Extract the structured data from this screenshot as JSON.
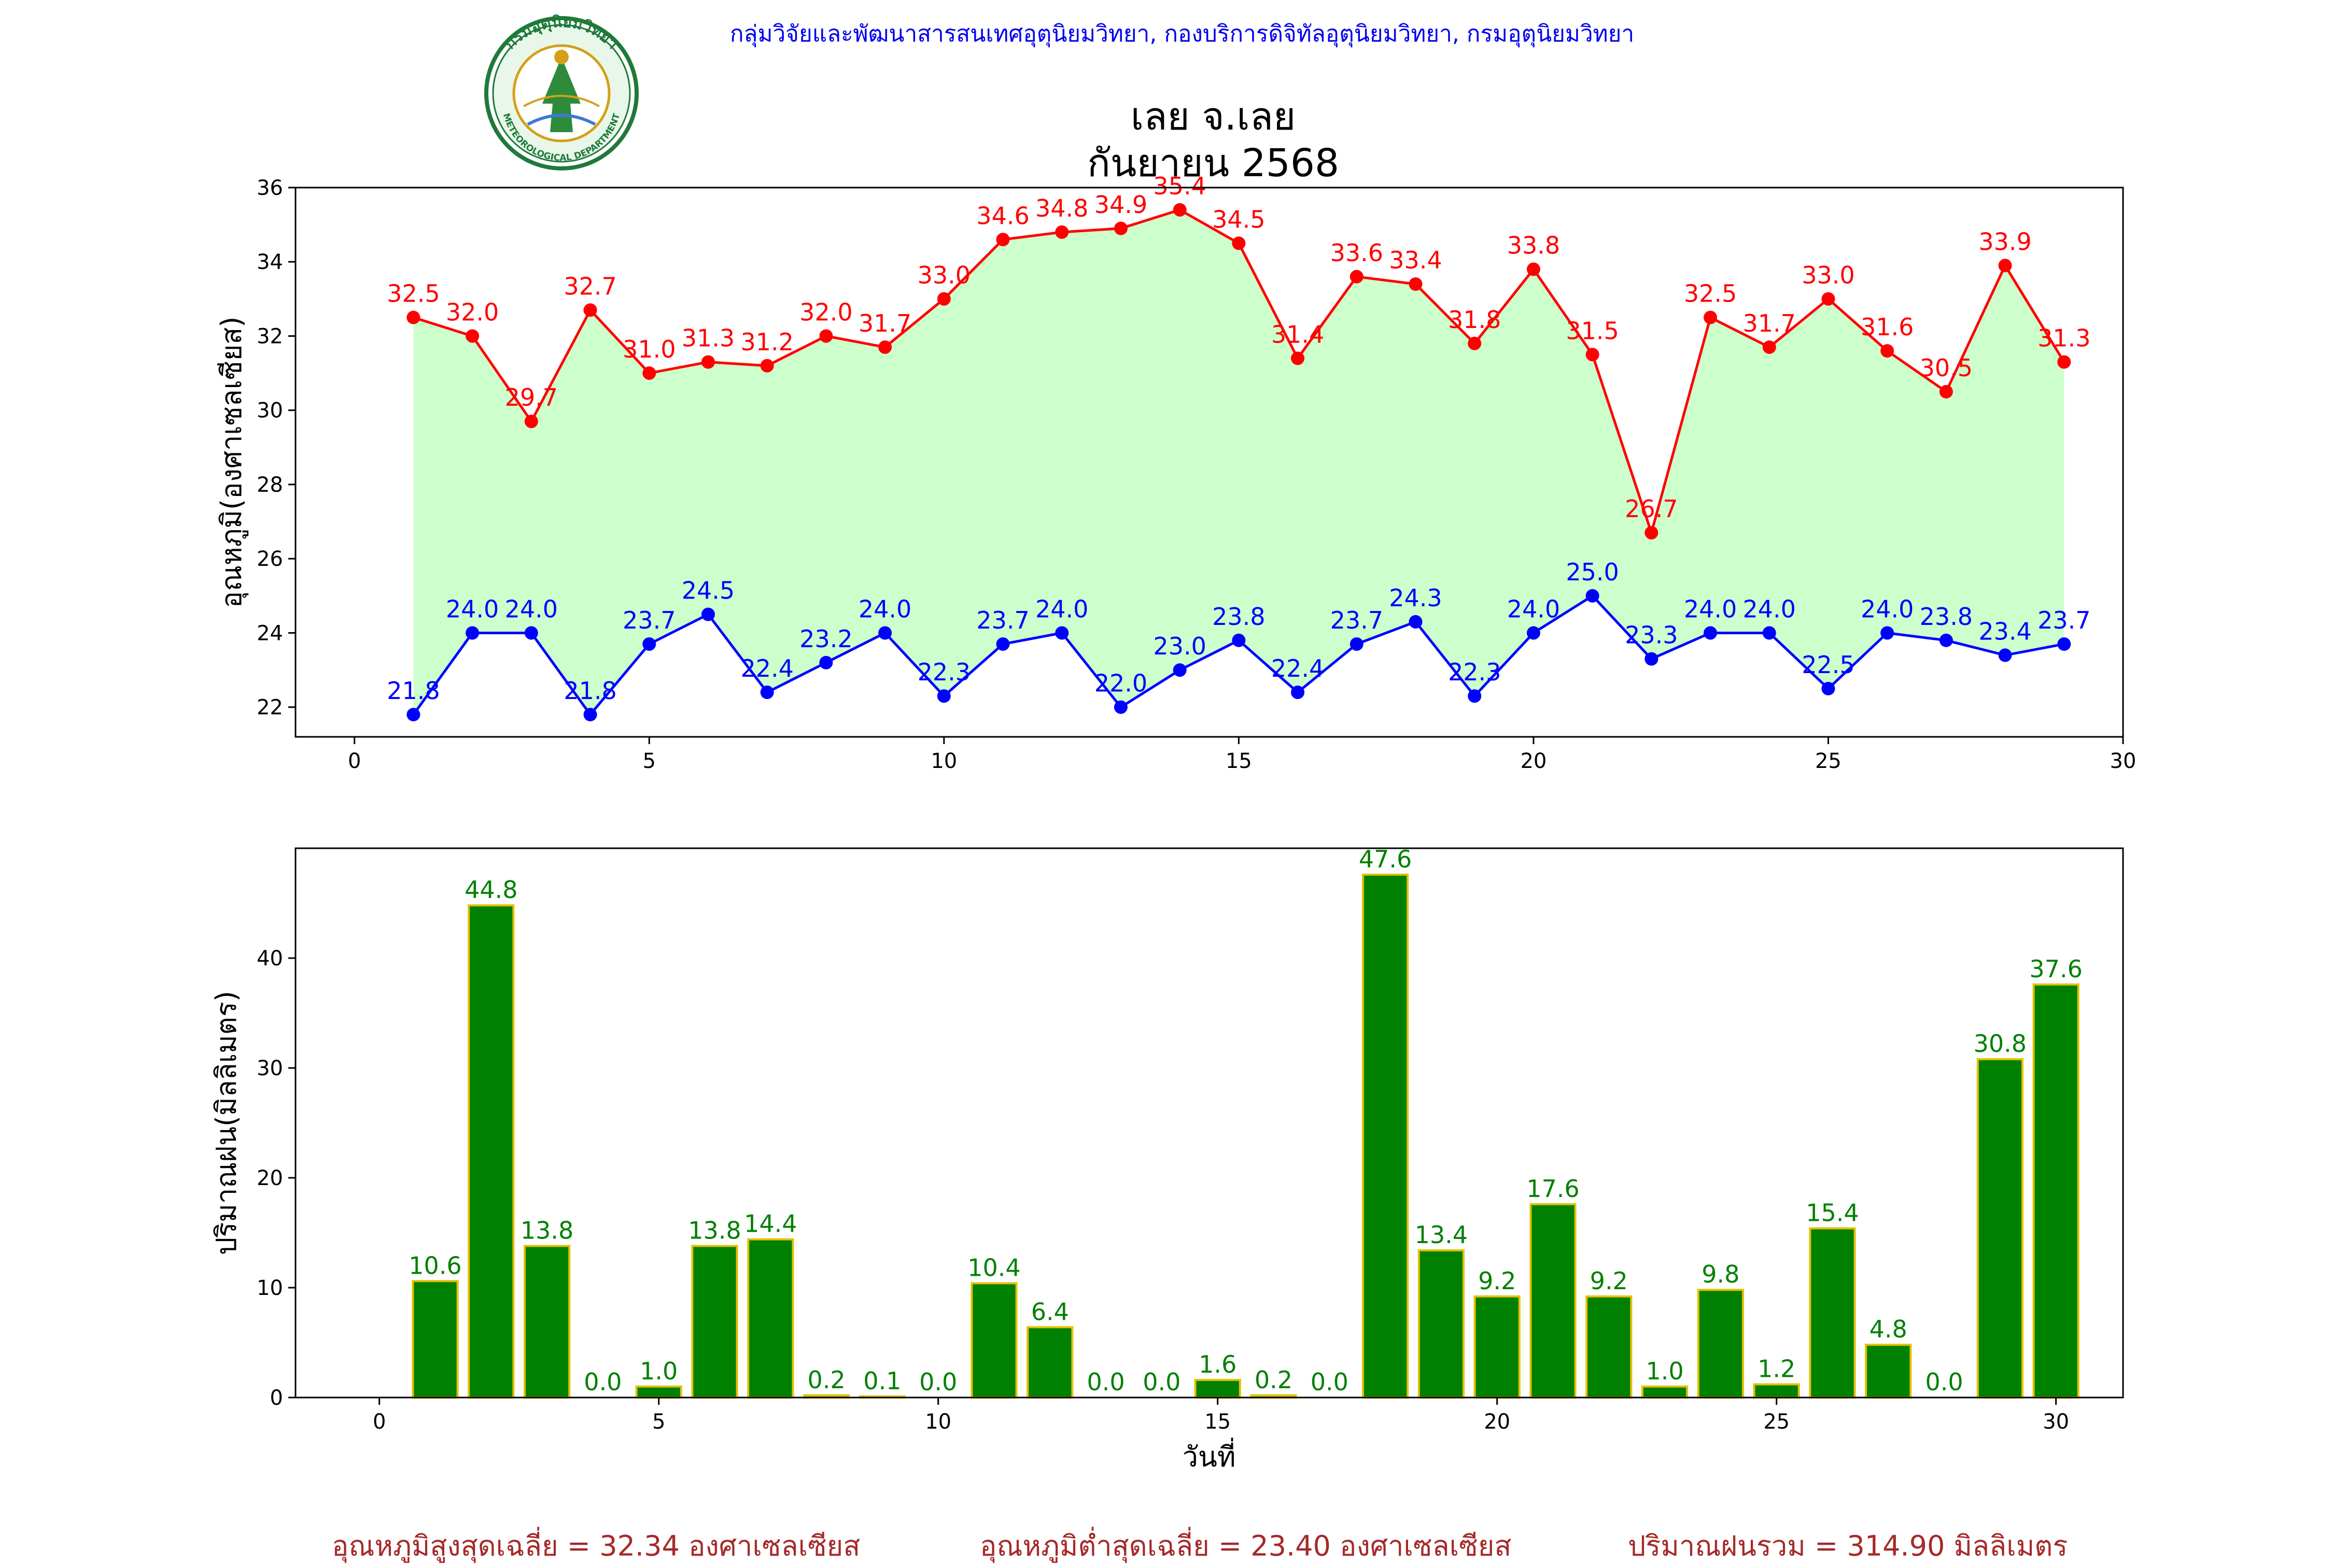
{
  "header": {
    "credit": "กลุ่มวิจัยและพัฒนาสารสนเทศอุตุนิยมวิทยา, กองบริการดิจิทัลอุตุนิยมวิทยา, กรมอุตุนิยมวิทยา",
    "title_line1": "เลย จ.เลย",
    "title_line2": "กันยายน 2568",
    "logo_top_text": "กรมอุตุนิยมวิทยา",
    "logo_bottom_text": "METEOROLOGICAL DEPARTMENT"
  },
  "chart_data": [
    {
      "type": "line",
      "ylabel": "อุณหภูมิ(องศาเซลเซียส)",
      "xlim": [
        -1,
        30
      ],
      "ylim": [
        21.2,
        36
      ],
      "xticks": [
        0,
        5,
        10,
        15,
        20,
        25,
        30
      ],
      "yticks": [
        22,
        24,
        26,
        28,
        30,
        32,
        34,
        36
      ],
      "fill_color": "#ccffcc",
      "x": [
        1,
        2,
        3,
        4,
        5,
        6,
        7,
        8,
        9,
        10,
        11,
        12,
        13,
        14,
        15,
        16,
        17,
        18,
        19,
        20,
        21,
        22,
        23,
        24,
        25,
        26,
        27,
        28,
        29
      ],
      "series": [
        {
          "name": "max",
          "color": "#ff0000",
          "values": [
            32.5,
            32.0,
            29.7,
            32.7,
            31.0,
            31.3,
            31.2,
            32.0,
            31.7,
            33.0,
            34.6,
            34.8,
            34.9,
            35.4,
            34.5,
            31.4,
            33.6,
            33.4,
            31.8,
            33.8,
            31.5,
            26.7,
            32.5,
            31.7,
            33.0,
            31.6,
            30.5,
            33.9,
            31.3
          ],
          "labels": [
            "32.5",
            "32.0",
            "29.7",
            "32.7",
            "31.0",
            "31.3",
            "31.2",
            "32.0",
            "31.7",
            "33.0",
            "34.6",
            "34.8",
            "34.9",
            "35.4",
            "34.5",
            "31.4",
            "33.6",
            "33.4",
            "31.8",
            "33.8",
            "31.5",
            "26.7",
            "32.5",
            "31.7",
            "33.0",
            "31.6",
            "30.5",
            "33.9",
            "31.3"
          ]
        },
        {
          "name": "min",
          "color": "#0000ff",
          "values": [
            21.8,
            24.0,
            24.0,
            21.8,
            23.7,
            24.5,
            22.4,
            23.2,
            24.0,
            22.3,
            23.7,
            24.0,
            22.0,
            23.0,
            23.8,
            22.4,
            23.7,
            24.3,
            22.3,
            24.0,
            25.0,
            23.3,
            24.0,
            24.0,
            22.5,
            24.0,
            23.8,
            23.4,
            23.7
          ],
          "labels": [
            "21.8",
            "24.0",
            "24.0",
            "21.8",
            "23.7",
            "24.5",
            "22.4",
            "23.2",
            "24.0",
            "22.3",
            "23.7",
            "24.0",
            "22.0",
            "23.0",
            "23.8",
            "22.4",
            "23.7",
            "24.3",
            "22.3",
            "24.0",
            "25.0",
            "23.3",
            "24.0",
            "24.0",
            "22.5",
            "24.0",
            "23.8",
            "23.4",
            "23.7"
          ]
        }
      ]
    },
    {
      "type": "bar",
      "ylabel": "ปริมาณฝน(มิลลิเมตร)",
      "xlabel": "วันที่",
      "xlim": [
        -1.5,
        31.2
      ],
      "ylim": [
        0,
        50
      ],
      "xticks": [
        0,
        5,
        10,
        15,
        20,
        25,
        30
      ],
      "yticks": [
        0,
        10,
        20,
        30,
        40
      ],
      "bar_color": "#008000",
      "edge_color": "#e5c100",
      "label_color": "#008000",
      "x": [
        1,
        2,
        3,
        4,
        5,
        6,
        7,
        8,
        9,
        10,
        11,
        12,
        13,
        14,
        15,
        16,
        17,
        18,
        19,
        20,
        21,
        22,
        23,
        24,
        25,
        26,
        27,
        28,
        29,
        30
      ],
      "values": [
        10.6,
        44.8,
        13.8,
        0.0,
        1.0,
        13.8,
        14.4,
        0.2,
        0.1,
        0.0,
        10.4,
        6.4,
        0.0,
        0.0,
        1.6,
        0.2,
        0.0,
        47.6,
        13.4,
        9.2,
        17.6,
        9.2,
        1.0,
        9.8,
        1.2,
        15.4,
        4.8,
        0.0,
        30.8,
        37.6
      ],
      "labels": [
        "10.6",
        "44.8",
        "13.8",
        "0.0",
        "1.0",
        "13.8",
        "14.4",
        "0.2",
        "0.1",
        "0.0",
        "10.4",
        "6.4",
        "0.0",
        "0.0",
        "1.6",
        "0.2",
        "0.0",
        "47.6",
        "13.4",
        "9.2",
        "17.6",
        "9.2",
        "1.0",
        "9.8",
        "1.2",
        "15.4",
        "4.8",
        "0.0",
        "30.8",
        "37.6"
      ]
    }
  ],
  "footer": {
    "avg_max": "อุณหภูมิสูงสุดเฉลี่ย = 32.34 องศาเซลเซียส",
    "avg_min": "อุณหภูมิต่ำสุดเฉลี่ย = 23.40 องศาเซลเซียส",
    "total_rain": "ปริมาณฝนรวม = 314.90 มิลลิเมตร"
  }
}
